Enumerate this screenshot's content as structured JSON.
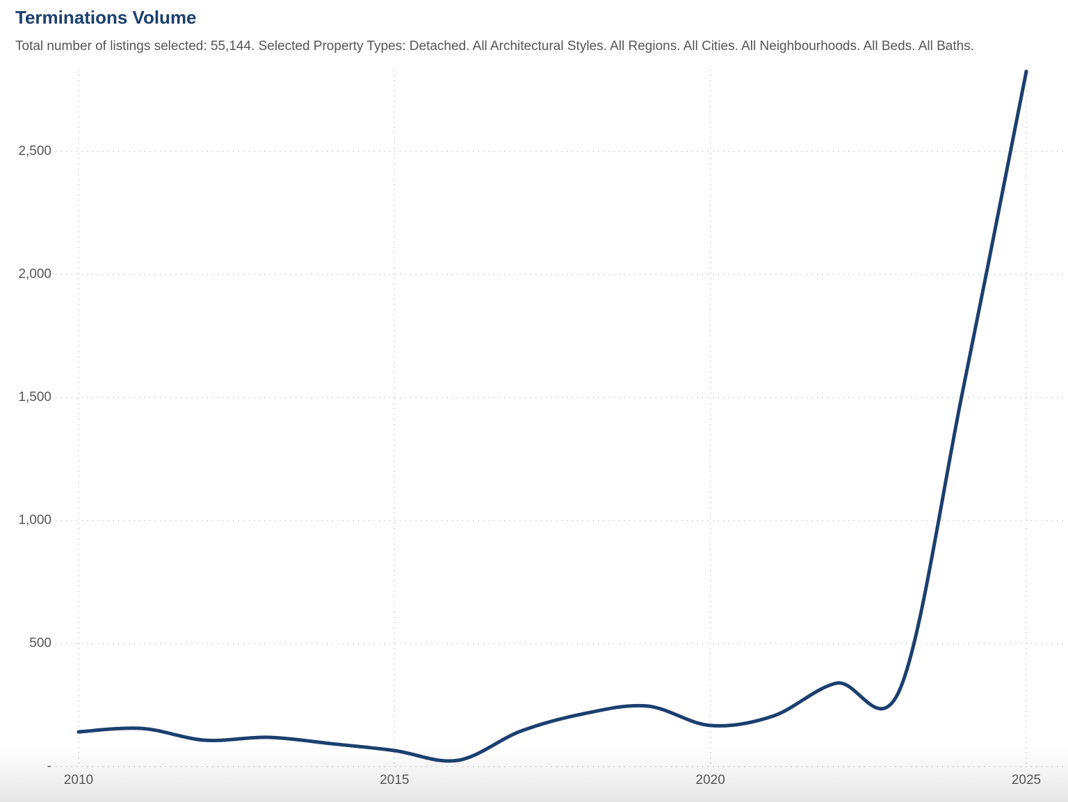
{
  "chart_data": {
    "type": "line",
    "title": "Terminations Volume",
    "subtitle": "Total number of listings selected: 55,144. Selected Property Types: Detached. All Architectural Styles. All Regions. All Cities. All Neighbourhoods. All Beds. All Baths.",
    "x": [
      2010,
      2011,
      2012,
      2013,
      2014,
      2015,
      2016,
      2017,
      2018,
      2019,
      2020,
      2021,
      2022,
      2023,
      2024,
      2025
    ],
    "values": [
      141,
      155,
      107,
      119,
      93,
      65,
      25,
      144,
      215,
      246,
      167,
      206,
      339,
      314,
      1534,
      2825
    ],
    "color": "#1b3f6e",
    "xlim": [
      2010,
      2025
    ],
    "xticks": [
      2010,
      2015,
      2020,
      2025
    ],
    "ylim": [
      0,
      2850
    ],
    "yticks": [
      {
        "value": 0,
        "label": "-"
      },
      {
        "value": 500,
        "label": "500"
      },
      {
        "value": 1000,
        "label": "1,000"
      },
      {
        "value": 1500,
        "label": "1,500"
      },
      {
        "value": 2000,
        "label": "2,000"
      },
      {
        "value": 2500,
        "label": "2,500"
      }
    ],
    "grid": true,
    "smooth": true
  }
}
